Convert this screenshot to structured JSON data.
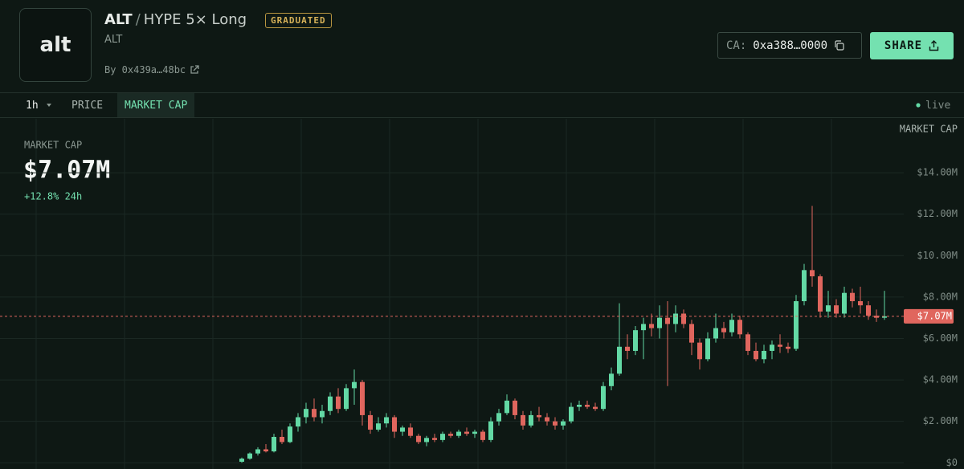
{
  "header": {
    "logo": "alt",
    "token": "ALT",
    "separator": "/",
    "pair": "HYPE 5× Long",
    "badge": "GRADUATED",
    "symbol": "ALT",
    "creator": "By 0x439a…48bc",
    "ca_label": "CA:",
    "ca": "0xa388…0000",
    "share": "SHARE"
  },
  "toolbar": {
    "interval": "1h",
    "tabs": [
      "PRICE",
      "MARKET CAP"
    ],
    "status": "live"
  },
  "chart_data": {
    "type": "candlestick",
    "axis_title": "MARKET CAP",
    "overlay": {
      "label": "MARKET CAP",
      "value": "$7.07M",
      "change": "+12.8% 24h"
    },
    "open": [
      0.05,
      0.2,
      0.45,
      0.65,
      0.55,
      1.25,
      1.0,
      1.75,
      2.2,
      2.6,
      2.2,
      2.5,
      3.2,
      2.6,
      3.6,
      3.9,
      2.3,
      1.6,
      1.9,
      2.2,
      1.5,
      1.7,
      1.3,
      1.0,
      1.2,
      1.1,
      1.4,
      1.3,
      1.5,
      1.4,
      1.5,
      1.1,
      2.0,
      2.4,
      3.0,
      2.3,
      1.8,
      2.3,
      2.2,
      2.0,
      1.8,
      2.0,
      2.7,
      2.8,
      2.7,
      2.6,
      3.7,
      4.3,
      5.6,
      5.4,
      6.4,
      6.7,
      6.5,
      7.0,
      6.7,
      7.2,
      6.7,
      5.8,
      5.0,
      6.0,
      6.5,
      6.3,
      6.9,
      6.2,
      5.4,
      5.0,
      5.4,
      5.7,
      5.6,
      5.5,
      7.8,
      9.3,
      9.0,
      7.3,
      7.6,
      7.2,
      8.2,
      7.8,
      7.6,
      7.1,
      7.0
    ],
    "high": [
      0.25,
      0.5,
      0.75,
      0.9,
      1.4,
      1.6,
      1.9,
      2.4,
      2.9,
      3.1,
      2.8,
      3.4,
      3.6,
      3.8,
      4.5,
      4.0,
      2.5,
      2.2,
      2.4,
      2.3,
      1.8,
      1.9,
      1.4,
      1.3,
      1.4,
      1.5,
      1.5,
      1.6,
      1.7,
      1.6,
      1.6,
      2.2,
      2.6,
      3.3,
      3.1,
      2.5,
      2.5,
      2.7,
      2.4,
      2.2,
      2.1,
      2.9,
      3.0,
      3.0,
      2.9,
      3.9,
      4.6,
      7.7,
      6.2,
      6.6,
      7.0,
      7.2,
      7.6,
      7.8,
      7.6,
      7.4,
      6.9,
      6.0,
      6.3,
      7.2,
      6.8,
      7.2,
      7.1,
      6.3,
      5.8,
      5.7,
      5.9,
      6.2,
      5.8,
      8.1,
      9.6,
      12.4,
      9.1,
      8.3,
      7.9,
      8.5,
      8.4,
      8.5,
      7.8,
      7.4,
      8.3
    ],
    "low": [
      0,
      0.15,
      0.35,
      0.5,
      0.5,
      0.9,
      0.95,
      1.5,
      1.9,
      2.0,
      1.9,
      2.3,
      2.4,
      2.5,
      2.8,
      1.8,
      1.4,
      1.5,
      1.7,
      1.2,
      1.3,
      1.2,
      0.9,
      0.8,
      1.0,
      1.0,
      1.2,
      1.2,
      1.3,
      1.2,
      1.0,
      1.0,
      1.8,
      2.3,
      2.1,
      1.6,
      1.7,
      2.0,
      1.8,
      1.6,
      1.6,
      1.9,
      2.5,
      2.6,
      2.5,
      2.5,
      3.5,
      4.2,
      5.0,
      5.2,
      5.0,
      6.1,
      6.0,
      3.7,
      6.3,
      6.5,
      5.2,
      4.5,
      4.9,
      5.8,
      6.0,
      6.1,
      6.0,
      5.2,
      4.9,
      4.8,
      5.0,
      5.3,
      5.3,
      5.4,
      7.6,
      8.5,
      7.0,
      7.0,
      7.0,
      7.0,
      7.5,
      7.2,
      6.9,
      6.8,
      6.9
    ],
    "close": [
      0.2,
      0.45,
      0.65,
      0.55,
      1.25,
      1.0,
      1.75,
      2.2,
      2.6,
      2.2,
      2.5,
      3.2,
      2.6,
      3.6,
      3.9,
      2.3,
      1.6,
      1.9,
      2.2,
      1.5,
      1.7,
      1.3,
      1.0,
      1.2,
      1.1,
      1.4,
      1.3,
      1.5,
      1.4,
      1.5,
      1.1,
      2.0,
      2.4,
      3.0,
      2.3,
      1.8,
      2.3,
      2.2,
      2.0,
      1.8,
      2.0,
      2.7,
      2.8,
      2.7,
      2.6,
      3.7,
      4.3,
      5.6,
      5.4,
      6.4,
      6.7,
      6.5,
      7.0,
      6.7,
      7.2,
      6.7,
      5.8,
      5.0,
      6.0,
      6.5,
      6.3,
      6.9,
      6.2,
      5.4,
      5.0,
      5.4,
      5.7,
      5.6,
      5.5,
      7.8,
      9.3,
      9.0,
      7.3,
      7.6,
      7.2,
      8.2,
      7.8,
      7.6,
      7.1,
      7.0,
      7.07
    ],
    "ylim": [
      -0.3,
      16.6
    ],
    "yticks": [
      {
        "value": 0,
        "label": "$0"
      },
      {
        "value": 2,
        "label": "$2.00M"
      },
      {
        "value": 4,
        "label": "$4.00M"
      },
      {
        "value": 6,
        "label": "$6.00M"
      },
      {
        "value": 8,
        "label": "$8.00M"
      },
      {
        "value": 10,
        "label": "$10.00M"
      },
      {
        "value": 12,
        "label": "$12.00M"
      },
      {
        "value": 14,
        "label": "$14.00M"
      }
    ],
    "last": {
      "value": 7.07,
      "label": "$7.07M"
    },
    "colors": {
      "up": "#63d9a5",
      "down": "#e0665e"
    },
    "grid": true
  }
}
